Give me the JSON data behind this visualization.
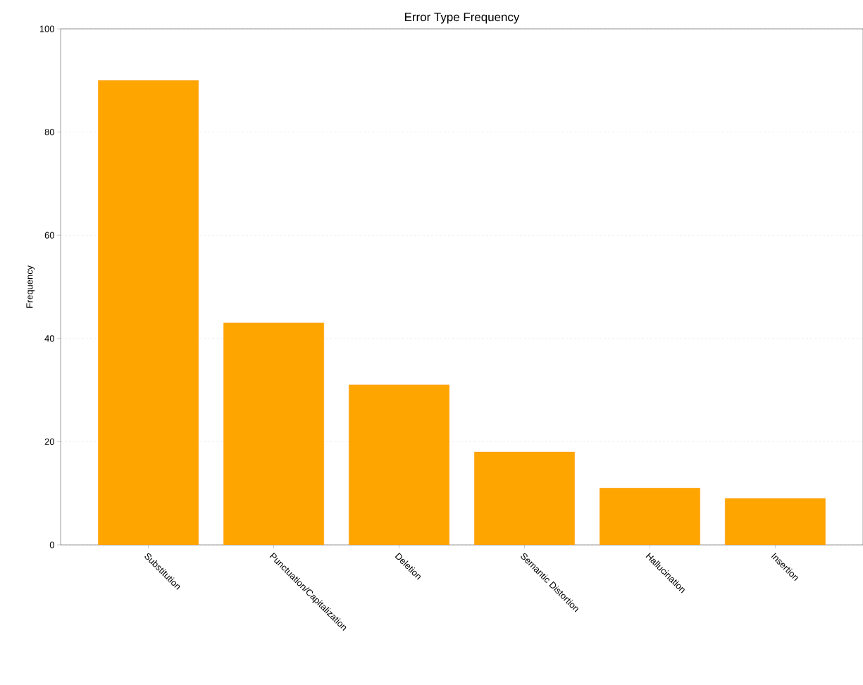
{
  "chart_data": {
    "type": "bar",
    "title": "Error Type Frequency",
    "ylabel": "Frequency",
    "categories": [
      "Substitution",
      "Punctuation/Capitalization",
      "Deletion",
      "Semantic Distortion",
      "Hallucination",
      "Insertion"
    ],
    "values": [
      90,
      43,
      31,
      18,
      11,
      9
    ],
    "color": "#ffa500",
    "ylim": [
      0,
      100
    ],
    "yticks": [
      0,
      20,
      40,
      60,
      80,
      100
    ],
    "grid": "y"
  }
}
